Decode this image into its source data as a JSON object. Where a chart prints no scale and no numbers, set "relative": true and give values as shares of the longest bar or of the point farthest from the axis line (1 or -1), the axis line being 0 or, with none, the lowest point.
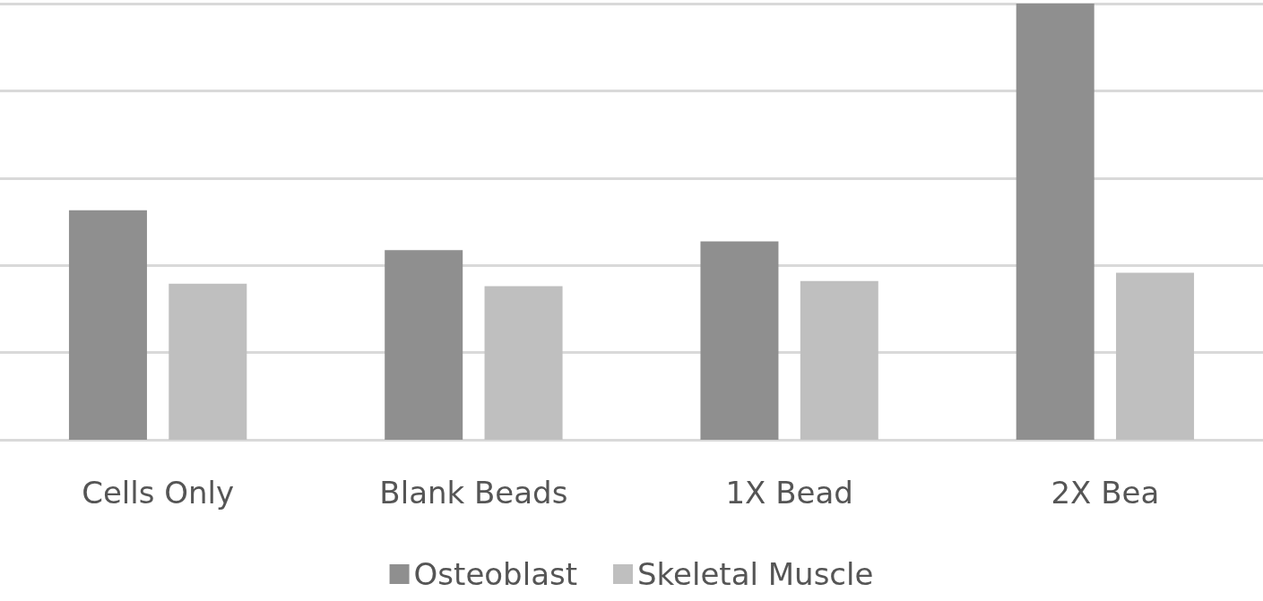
{
  "chart_data": {
    "type": "bar",
    "relative": true,
    "categories": [
      "Cells Only",
      "Blank Beads",
      "1X Bead",
      "2X Bea"
    ],
    "series": [
      {
        "name": "Osteoblast",
        "color": "#8f8f8f",
        "values": [
          0.526,
          0.435,
          0.455,
          1
        ]
      },
      {
        "name": "Skeletal Muscle",
        "color": "#bfbfbf",
        "values": [
          0.358,
          0.352,
          0.364,
          0.383
        ]
      }
    ],
    "grid": "y",
    "legend": "bottom"
  }
}
